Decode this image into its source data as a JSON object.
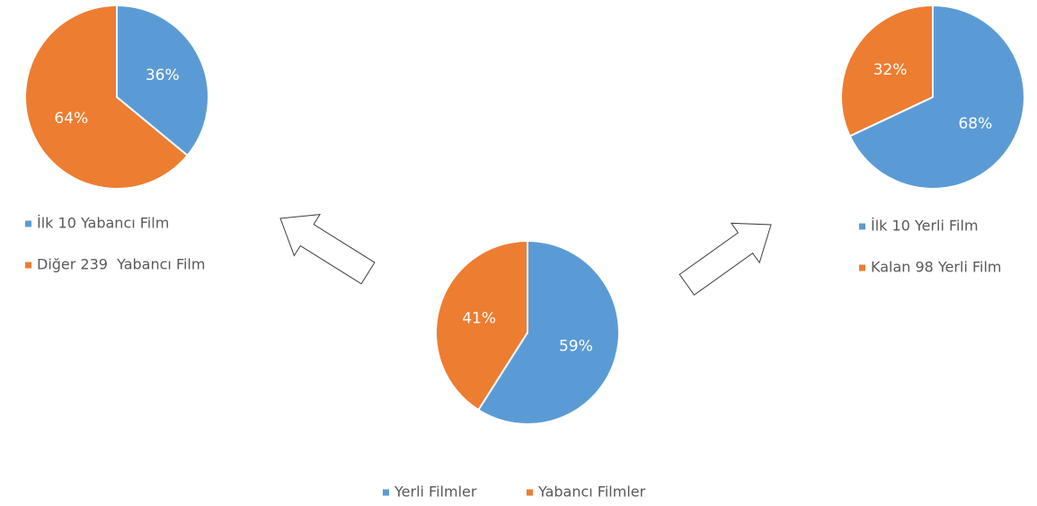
{
  "chart_data": [
    {
      "type": "pie",
      "categories": [
        "İlk 10 Yabancı Film",
        "Diğer 239  Yabancı Film"
      ],
      "values": [
        36,
        64
      ],
      "value_labels": [
        "36%",
        "64%"
      ],
      "colors": [
        "#5b9bd5",
        "#ed7d31"
      ],
      "legend": "bottom"
    },
    {
      "type": "pie",
      "categories": [
        "Yerli Filmler",
        "Yabancı Filmler"
      ],
      "values": [
        59,
        41
      ],
      "value_labels": [
        "59%",
        "41%"
      ],
      "colors": [
        "#5b9bd5",
        "#ed7d31"
      ],
      "legend": "bottom"
    },
    {
      "type": "pie",
      "categories": [
        "İlk 10 Yerli Film",
        "Kalan 98 Yerli Film"
      ],
      "values": [
        68,
        32
      ],
      "value_labels": [
        "68%",
        "32%"
      ],
      "colors": [
        "#5b9bd5",
        "#ed7d31"
      ],
      "legend": "bottom"
    }
  ]
}
